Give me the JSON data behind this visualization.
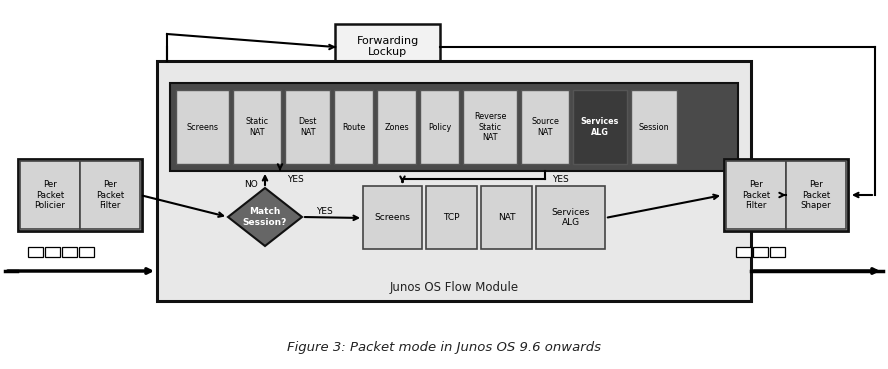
{
  "title": "Figure 3: Packet mode in Junos OS 9.6 onwards",
  "bg_color": "#ffffff",
  "dark_gray": "#5a5a5a",
  "mid_gray": "#707070",
  "lighter_gray": "#d4d4d4",
  "top_boxes": [
    "Screens",
    "Static\nNAT",
    "Dest\nNAT",
    "Route",
    "Zones",
    "Policy",
    "Reverse\nStatic\nNAT",
    "Source\nNAT",
    "Services\nALG",
    "Session"
  ],
  "bottom_boxes": [
    "Screens",
    "TCP",
    "NAT",
    "Services\nALG"
  ],
  "left_boxes": [
    "Per\nPacket\nPolicier",
    "Per\nPacket\nFilter"
  ],
  "right_boxes": [
    "Per\nPacket\nFilter",
    "Per\nPacket\nShaper"
  ],
  "forwarding_label": "Forwarding\nLockup",
  "flow_module_label": "Junos OS Flow Module",
  "diamond_label": "Match\nSession?",
  "yes_label": "YES",
  "no_label": "NO",
  "top_bar_dark": "#4a4a4a",
  "services_alg_dark": "#4a4a4a"
}
